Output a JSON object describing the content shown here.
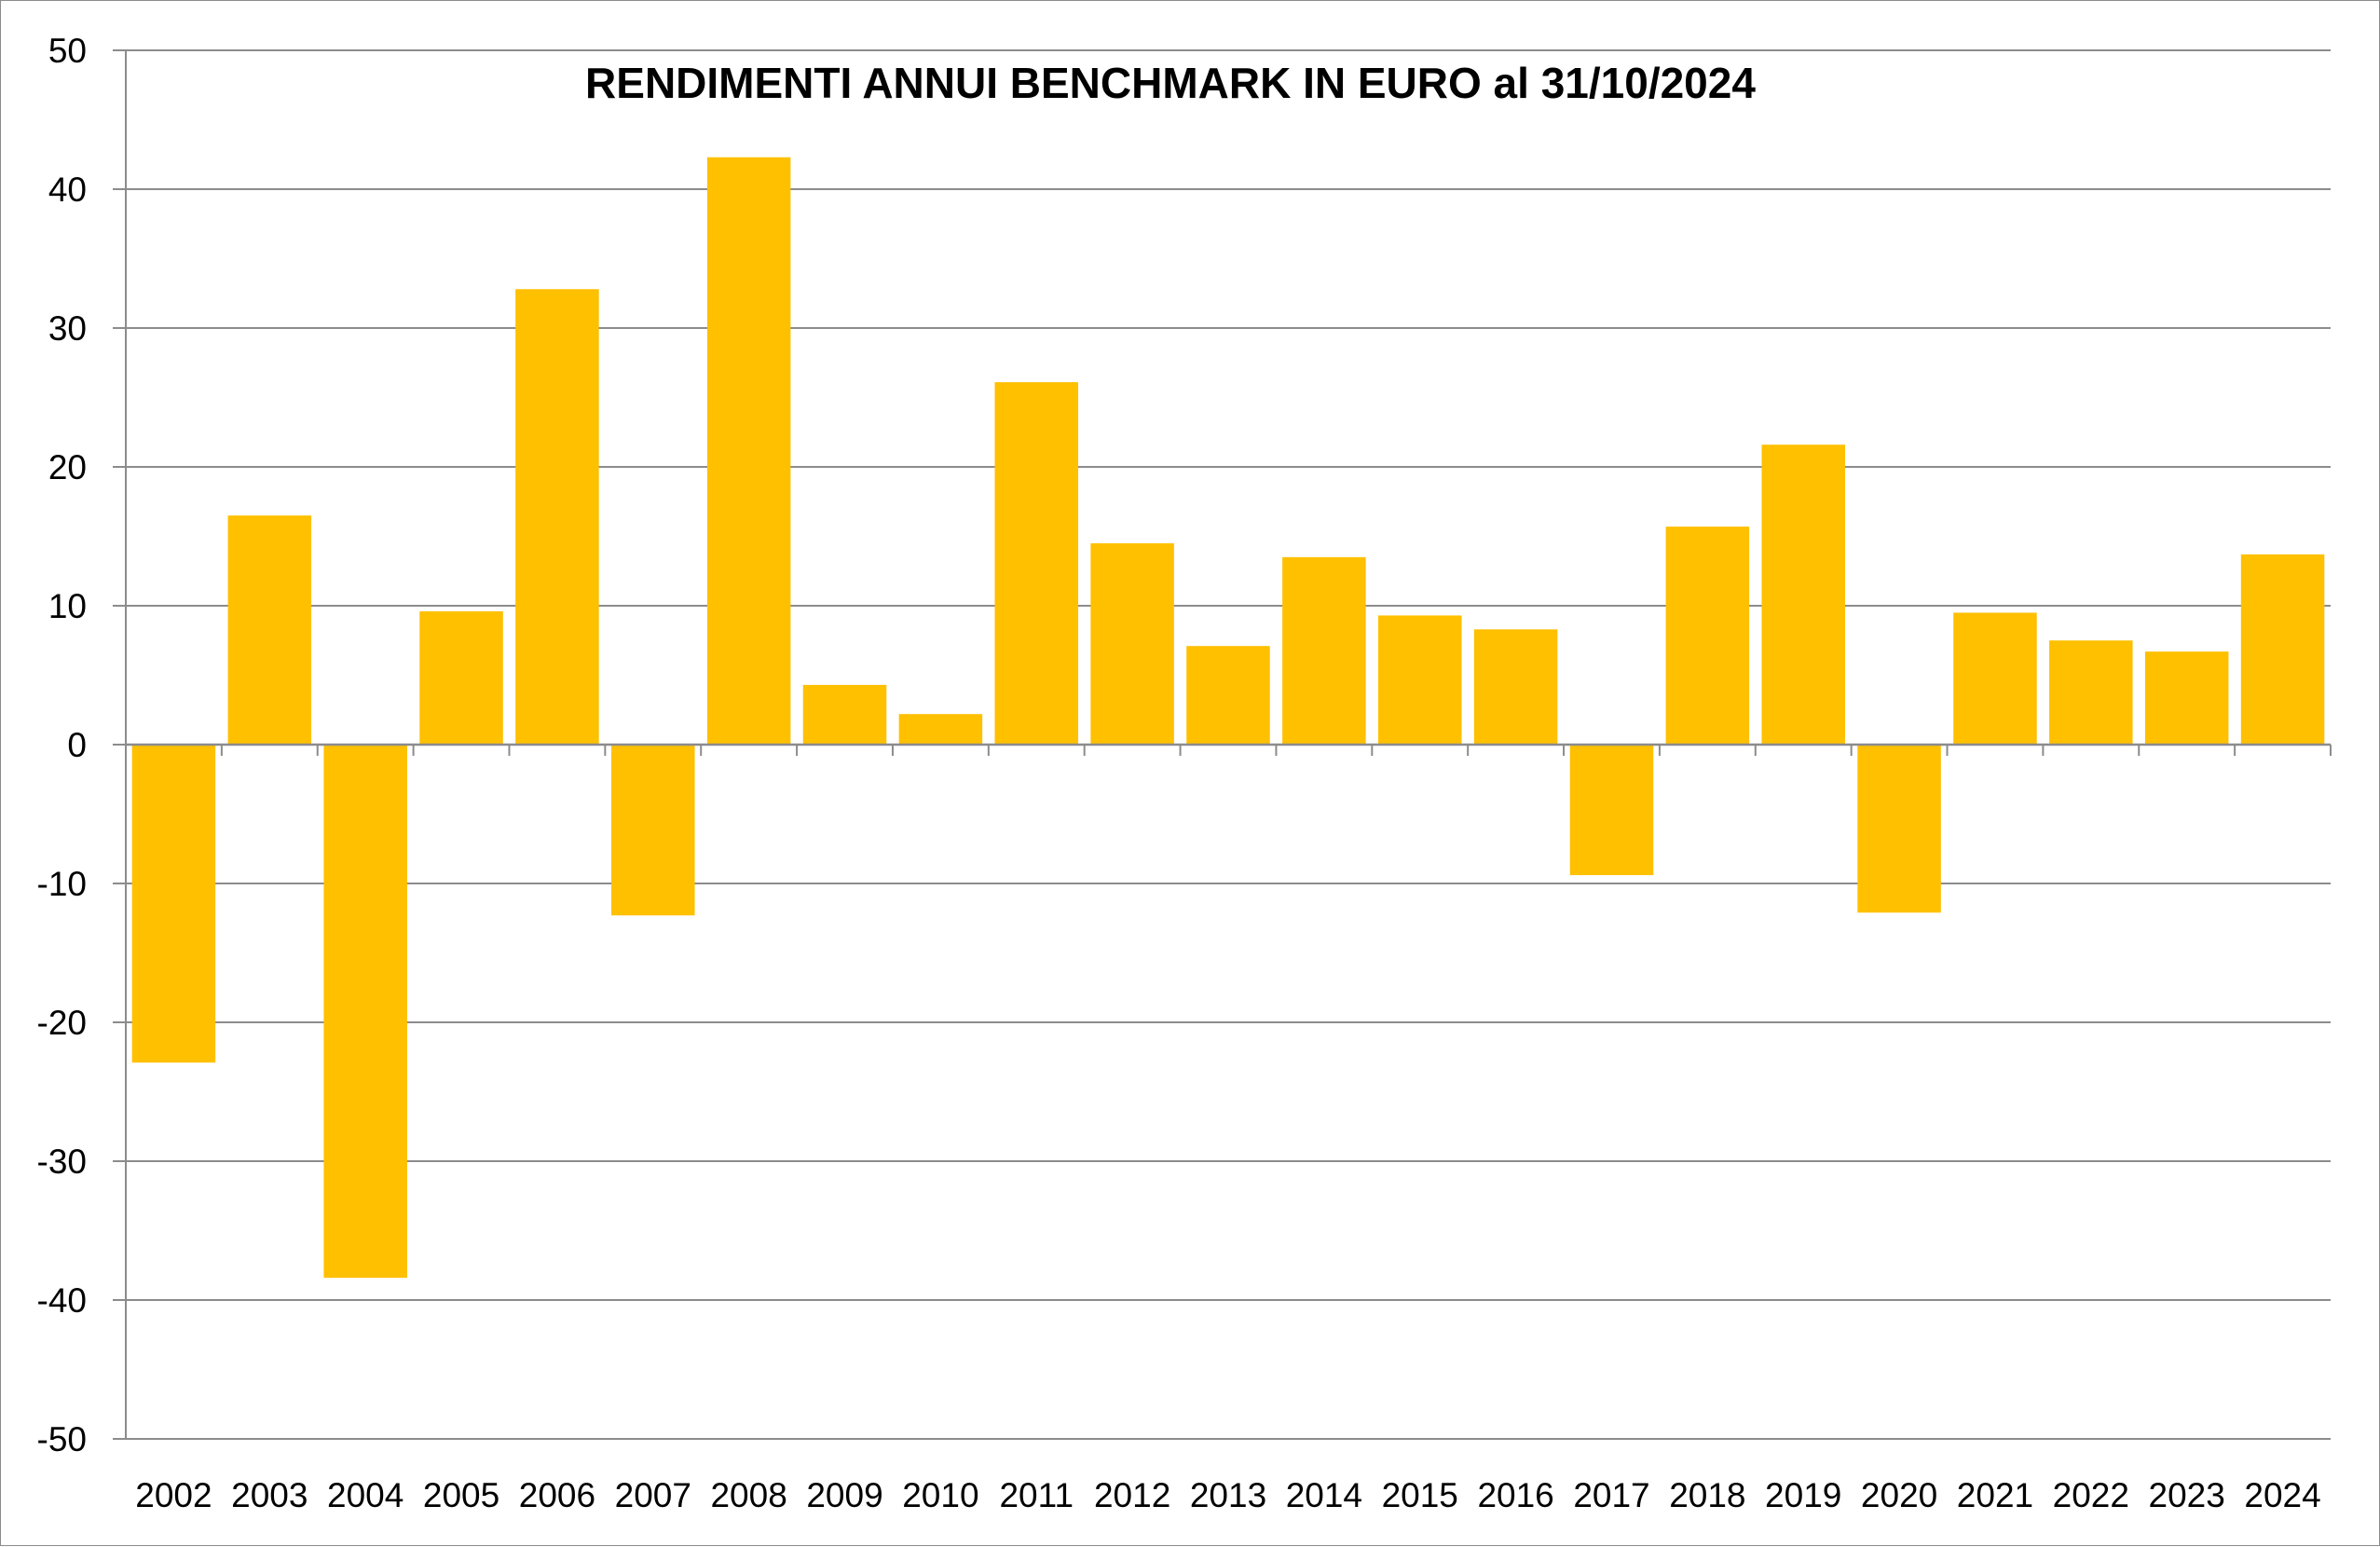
{
  "chart_data": {
    "type": "bar",
    "title": "RENDIMENTI ANNUI BENCHMARK IN EURO al 31/10/2024",
    "xlabel": "",
    "ylabel": "",
    "ylim": [
      -50,
      50
    ],
    "yticks": [
      50,
      40,
      30,
      20,
      10,
      0,
      -10,
      -20,
      -30,
      -40,
      -50
    ],
    "categories": [
      "2002",
      "2003",
      "2004",
      "2005",
      "2006",
      "2007",
      "2008",
      "2009",
      "2010",
      "2011",
      "2012",
      "2013",
      "2014",
      "2015",
      "2016",
      "2017",
      "2018",
      "2019",
      "2020",
      "2021",
      "2022",
      "2023",
      "2024"
    ],
    "values": [
      -22.9,
      16.5,
      -38.4,
      9.6,
      32.8,
      -12.3,
      42.3,
      4.3,
      2.2,
      26.1,
      14.5,
      7.1,
      13.5,
      9.3,
      8.3,
      -9.4,
      15.7,
      21.6,
      -12.1,
      9.5,
      7.5,
      6.7,
      13.7
    ],
    "grid": true,
    "legend": "none",
    "colors": {
      "bar": "#FFC000",
      "grid": "#8c8c8c",
      "axis": "#8c8c8c",
      "text": "#000000"
    }
  }
}
